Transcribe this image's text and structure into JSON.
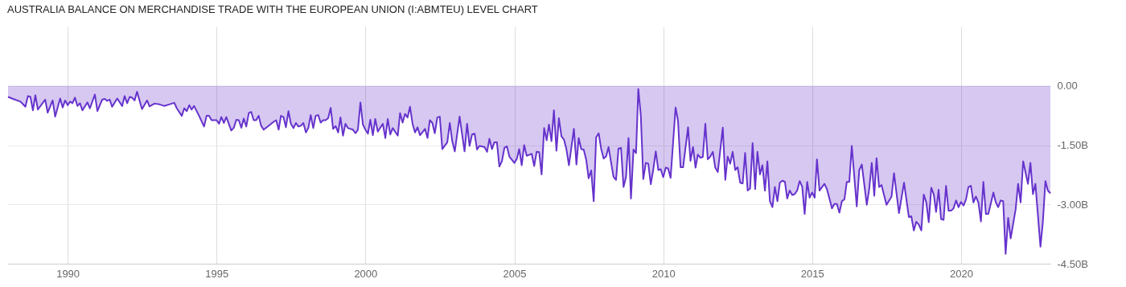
{
  "chart_data": {
    "type": "area",
    "title": "AUSTRALIA BALANCE ON MERCHANDISE TRADE WITH THE EUROPEAN UNION (I:ABMTEU) LEVEL CHART",
    "x": [
      "1988-01",
      "1988-03",
      "1988-06",
      "1988-08",
      "1988-09",
      "1988-10",
      "1988-11",
      "1988-12",
      "1989-01",
      "1989-04",
      "1989-05",
      "1989-07",
      "1989-08",
      "1989-10",
      "1989-11",
      "1989-12",
      "1990-01",
      "1990-02",
      "1990-03",
      "1990-04",
      "1990-05",
      "1990-06",
      "1990-07",
      "1990-09",
      "1990-10",
      "1990-12",
      "1991-01",
      "1991-03",
      "1991-04",
      "1991-05",
      "1991-06",
      "1991-07",
      "1991-09",
      "1991-11",
      "1991-12",
      "1992-01",
      "1992-02",
      "1992-03",
      "1992-04",
      "1992-05",
      "1992-07",
      "1992-09",
      "1992-10",
      "1992-12",
      "1993-02",
      "1993-04",
      "1993-06",
      "1993-08",
      "1993-09",
      "1993-11",
      "1993-12",
      "1994-01",
      "1994-02",
      "1994-03",
      "1994-04",
      "1994-06",
      "1994-08",
      "1994-09",
      "1994-10",
      "1994-11",
      "1995-01",
      "1995-02",
      "1995-03",
      "1995-04",
      "1995-05",
      "1995-07",
      "1995-08",
      "1995-09",
      "1995-10",
      "1995-11",
      "1995-12",
      "1996-01",
      "1996-02",
      "1996-03",
      "1996-04",
      "1996-05",
      "1996-06",
      "1996-07",
      "1996-08",
      "1996-10",
      "1996-12",
      "1997-01",
      "1997-02",
      "1997-03",
      "1997-04",
      "1997-05",
      "1997-06",
      "1997-07",
      "1997-08",
      "1997-09",
      "1997-10",
      "1997-11",
      "1997-12",
      "1998-01",
      "1998-02",
      "1998-03",
      "1998-04",
      "1998-05",
      "1998-06",
      "1998-07",
      "1998-08",
      "1998-09",
      "1998-10",
      "1998-11",
      "1998-12",
      "1999-01",
      "1999-02",
      "1999-03",
      "1999-04",
      "1999-05",
      "1999-06",
      "1999-08",
      "1999-09",
      "1999-10",
      "1999-11",
      "1999-12",
      "2000-01",
      "2000-02",
      "2000-03",
      "2000-04",
      "2000-05",
      "2000-06",
      "2000-08",
      "2000-09",
      "2000-10",
      "2000-11",
      "2000-12",
      "2001-02",
      "2001-03",
      "2001-04",
      "2001-05",
      "2001-06",
      "2001-07",
      "2001-08",
      "2001-09",
      "2001-10",
      "2001-11",
      "2002-01",
      "2002-02",
      "2002-03",
      "2002-04",
      "2002-05",
      "2002-06",
      "2002-07",
      "2002-08",
      "2002-10",
      "2002-11",
      "2002-12",
      "2003-01",
      "2003-03",
      "2003-05",
      "2003-06",
      "2003-07",
      "2003-08",
      "2003-09",
      "2003-10",
      "2003-11",
      "2004-01",
      "2004-02",
      "2004-03",
      "2004-04",
      "2004-05",
      "2004-06",
      "2004-07",
      "2004-08",
      "2004-09",
      "2004-10",
      "2004-11",
      "2005-01",
      "2005-02",
      "2005-03",
      "2005-04",
      "2005-05",
      "2005-06",
      "2005-08",
      "2005-09",
      "2005-10",
      "2005-11",
      "2005-12",
      "2006-01",
      "2006-02",
      "2006-03",
      "2006-04",
      "2006-05",
      "2006-06",
      "2006-07",
      "2006-08",
      "2006-09",
      "2006-10",
      "2006-11",
      "2007-01",
      "2007-02",
      "2007-03",
      "2007-04",
      "2007-05",
      "2007-06",
      "2007-07",
      "2007-08",
      "2007-09",
      "2007-10",
      "2007-11",
      "2007-12",
      "2008-01",
      "2008-02",
      "2008-03",
      "2008-04",
      "2008-05",
      "2008-06",
      "2008-07",
      "2008-08",
      "2008-09",
      "2008-10",
      "2008-11",
      "2008-12",
      "2009-01",
      "2009-02",
      "2009-03",
      "2009-04",
      "2009-05",
      "2009-06",
      "2009-07",
      "2009-08",
      "2009-09",
      "2009-10",
      "2009-11",
      "2009-12",
      "2010-01",
      "2010-02",
      "2010-03",
      "2010-04",
      "2010-06",
      "2010-07",
      "2010-08",
      "2010-09",
      "2010-11",
      "2010-12",
      "2011-01",
      "2011-02",
      "2011-03",
      "2011-04",
      "2011-05",
      "2011-06",
      "2011-07",
      "2011-08",
      "2011-09",
      "2011-10",
      "2011-11",
      "2012-01",
      "2012-02",
      "2012-03",
      "2012-04",
      "2012-05",
      "2012-06",
      "2012-07",
      "2012-08",
      "2012-09",
      "2012-10",
      "2012-11",
      "2012-12",
      "2013-01",
      "2013-02",
      "2013-03",
      "2013-04",
      "2013-05",
      "2013-06",
      "2013-07",
      "2013-08",
      "2013-09",
      "2013-10",
      "2013-11",
      "2013-12",
      "2014-01",
      "2014-02",
      "2014-03",
      "2014-04",
      "2014-05",
      "2014-06",
      "2014-07",
      "2014-08",
      "2014-09",
      "2014-10",
      "2014-11",
      "2014-12",
      "2015-01",
      "2015-02",
      "2015-03",
      "2015-04",
      "2015-06",
      "2015-07",
      "2015-09",
      "2015-10",
      "2015-11",
      "2015-12",
      "2016-01",
      "2016-02",
      "2016-03",
      "2016-04",
      "2016-05",
      "2016-07",
      "2016-08",
      "2016-09",
      "2016-11",
      "2016-12",
      "2017-01",
      "2017-02",
      "2017-03",
      "2017-04",
      "2017-05",
      "2017-07",
      "2017-09",
      "2017-10",
      "2017-12",
      "2018-02",
      "2018-04",
      "2018-05",
      "2018-06",
      "2018-07",
      "2018-08",
      "2018-09",
      "2018-10",
      "2018-11",
      "2018-12",
      "2019-01",
      "2019-02",
      "2019-03",
      "2019-04",
      "2019-05",
      "2019-06",
      "2019-07",
      "2019-08",
      "2019-09",
      "2019-10",
      "2019-11",
      "2019-12",
      "2020-01",
      "2020-02",
      "2020-03",
      "2020-04",
      "2020-05",
      "2020-06",
      "2020-07",
      "2020-08",
      "2020-09",
      "2020-10",
      "2020-11",
      "2020-12",
      "2021-02",
      "2021-03",
      "2021-04",
      "2021-05",
      "2021-06",
      "2021-07",
      "2021-08",
      "2021-09",
      "2021-11",
      "2021-12",
      "2022-01",
      "2022-02",
      "2022-04",
      "2022-05",
      "2022-06",
      "2022-07",
      "2022-09",
      "2022-10",
      "2022-11",
      "2022-12",
      "2023-01"
    ],
    "series": [
      {
        "color": "#6633cc",
        "values": [
          -0.28,
          -0.33,
          -0.4,
          -0.53,
          -0.26,
          -0.28,
          -0.62,
          -0.24,
          -0.6,
          -0.35,
          -0.68,
          -0.37,
          -0.78,
          -0.32,
          -0.55,
          -0.37,
          -0.49,
          -0.4,
          -0.44,
          -0.3,
          -0.51,
          -0.44,
          -0.62,
          -0.42,
          -0.57,
          -0.22,
          -0.64,
          -0.35,
          -0.33,
          -0.38,
          -0.35,
          -0.53,
          -0.32,
          -0.51,
          -0.26,
          -0.44,
          -0.28,
          -0.3,
          -0.37,
          -0.15,
          -0.59,
          -0.37,
          -0.52,
          -0.45,
          -0.47,
          -0.51,
          -0.47,
          -0.43,
          -0.57,
          -0.76,
          -0.57,
          -0.64,
          -0.49,
          -0.6,
          -0.51,
          -0.76,
          -1.03,
          -0.76,
          -0.76,
          -0.87,
          -0.87,
          -0.96,
          -0.79,
          -0.94,
          -0.79,
          -1.13,
          -1.06,
          -0.86,
          -0.87,
          -1.06,
          -0.83,
          -1.03,
          -0.69,
          -0.66,
          -0.87,
          -0.87,
          -0.76,
          -1.01,
          -1.11,
          -1.01,
          -0.91,
          -0.87,
          -1.11,
          -0.76,
          -0.79,
          -1.05,
          -0.64,
          -0.96,
          -1.07,
          -0.94,
          -1.03,
          -1.01,
          -0.94,
          -1.18,
          -1.06,
          -0.74,
          -1.07,
          -0.76,
          -0.74,
          -0.93,
          -0.87,
          -0.87,
          -0.82,
          -0.56,
          -1.09,
          -1.02,
          -1.18,
          -0.8,
          -1.26,
          -0.96,
          -1.07,
          -1.11,
          -1.2,
          -1.11,
          -0.42,
          -0.98,
          -1.11,
          -1.21,
          -0.86,
          -1.25,
          -0.84,
          -1.16,
          -0.96,
          -1.32,
          -0.84,
          -1.23,
          -1.07,
          -1.26,
          -0.69,
          -0.93,
          -0.71,
          -0.8,
          -0.53,
          -0.96,
          -1.18,
          -1.05,
          -1.25,
          -1.09,
          -1.32,
          -0.87,
          -0.94,
          -1.2,
          -0.8,
          -0.78,
          -1.6,
          -1.43,
          -0.94,
          -1.4,
          -1.66,
          -0.78,
          -1.66,
          -0.96,
          -1.52,
          -1.23,
          -1.21,
          -1.61,
          -1.52,
          -1.55,
          -1.67,
          -1.34,
          -1.6,
          -1.43,
          -1.43,
          -2.04,
          -1.91,
          -1.57,
          -1.53,
          -1.79,
          -1.95,
          -1.84,
          -1.6,
          -2.01,
          -1.5,
          -1.77,
          -1.72,
          -2.03,
          -1.67,
          -1.68,
          -2.24,
          -1.07,
          -1.38,
          -0.98,
          -1.4,
          -0.62,
          -1.64,
          -0.82,
          -1.28,
          -1.36,
          -1.6,
          -2.01,
          -1.09,
          -1.99,
          -1.32,
          -1.6,
          -1.61,
          -1.87,
          -2.34,
          -2.14,
          -2.92,
          -1.3,
          -1.2,
          -1.59,
          -1.84,
          -1.78,
          -1.55,
          -1.94,
          -2.3,
          -2.38,
          -1.59,
          -1.57,
          -2.56,
          -2.31,
          -1.32,
          -2.85,
          -1.61,
          -1.7,
          -0.08,
          -0.76,
          -2.36,
          -1.95,
          -1.97,
          -2.49,
          -2.11,
          -1.66,
          -2.13,
          -2.11,
          -2.31,
          -2.07,
          -2.09,
          -2.33,
          -0.55,
          -0.89,
          -2.06,
          -2.06,
          -1.05,
          -1.9,
          -1.55,
          -2.07,
          -1.74,
          -1.82,
          -1.8,
          -0.96,
          -1.86,
          -1.79,
          -1.67,
          -2.07,
          -2.18,
          -1.06,
          -2.38,
          -1.79,
          -1.97,
          -1.67,
          -2.13,
          -2.06,
          -2.45,
          -2.47,
          -1.7,
          -2.65,
          -2.6,
          -1.45,
          -2.61,
          -1.67,
          -2.24,
          -2.01,
          -2.65,
          -1.91,
          -2.92,
          -3.07,
          -2.56,
          -2.92,
          -2.45,
          -2.4,
          -2.43,
          -2.85,
          -2.65,
          -2.76,
          -2.74,
          -2.65,
          -2.41,
          -2.55,
          -3.24,
          -2.43,
          -2.83,
          -2.7,
          -2.83,
          -1.86,
          -2.65,
          -2.48,
          -2.61,
          -3.1,
          -2.99,
          -2.99,
          -3.21,
          -2.92,
          -2.87,
          -2.43,
          -2.43,
          -1.52,
          -3.05,
          -2.13,
          -1.99,
          -3.01,
          -2.61,
          -1.95,
          -2.78,
          -1.83,
          -2.56,
          -2.51,
          -3.01,
          -2.8,
          -2.21,
          -3.22,
          -2.45,
          -3.32,
          -3.3,
          -3.66,
          -3.44,
          -3.51,
          -3.66,
          -2.75,
          -2.95,
          -3.45,
          -2.58,
          -2.75,
          -3.19,
          -2.63,
          -3.37,
          -3.39,
          -2.53,
          -3.16,
          -3.16,
          -3.1,
          -2.9,
          -3.07,
          -2.94,
          -3.03,
          -2.88,
          -2.56,
          -2.53,
          -2.95,
          -2.8,
          -2.95,
          -3.43,
          -2.43,
          -3.24,
          -3.24,
          -2.7,
          -2.94,
          -3.07,
          -2.9,
          -2.92,
          -4.25,
          -3.34,
          -3.86,
          -3.12,
          -2.48,
          -2.95,
          -1.91,
          -2.48,
          -1.95,
          -2.74,
          -2.48,
          -4.07,
          -3.43,
          -2.41,
          -2.65,
          -2.72
        ]
      }
    ],
    "xlim": [
      "1988-01",
      "2023-01"
    ],
    "xticks": [
      "1990",
      "1995",
      "2000",
      "2005",
      "2010",
      "2015",
      "2020"
    ],
    "ylim": [
      -4.5,
      1.5
    ],
    "yticks": [
      {
        "value": 0,
        "label": "0.00"
      },
      {
        "value": -1.5,
        "label": "-1.50B"
      },
      {
        "value": -3,
        "label": "-3.00B"
      },
      {
        "value": -4.5,
        "label": "-4.50B"
      }
    ],
    "grid": true
  }
}
